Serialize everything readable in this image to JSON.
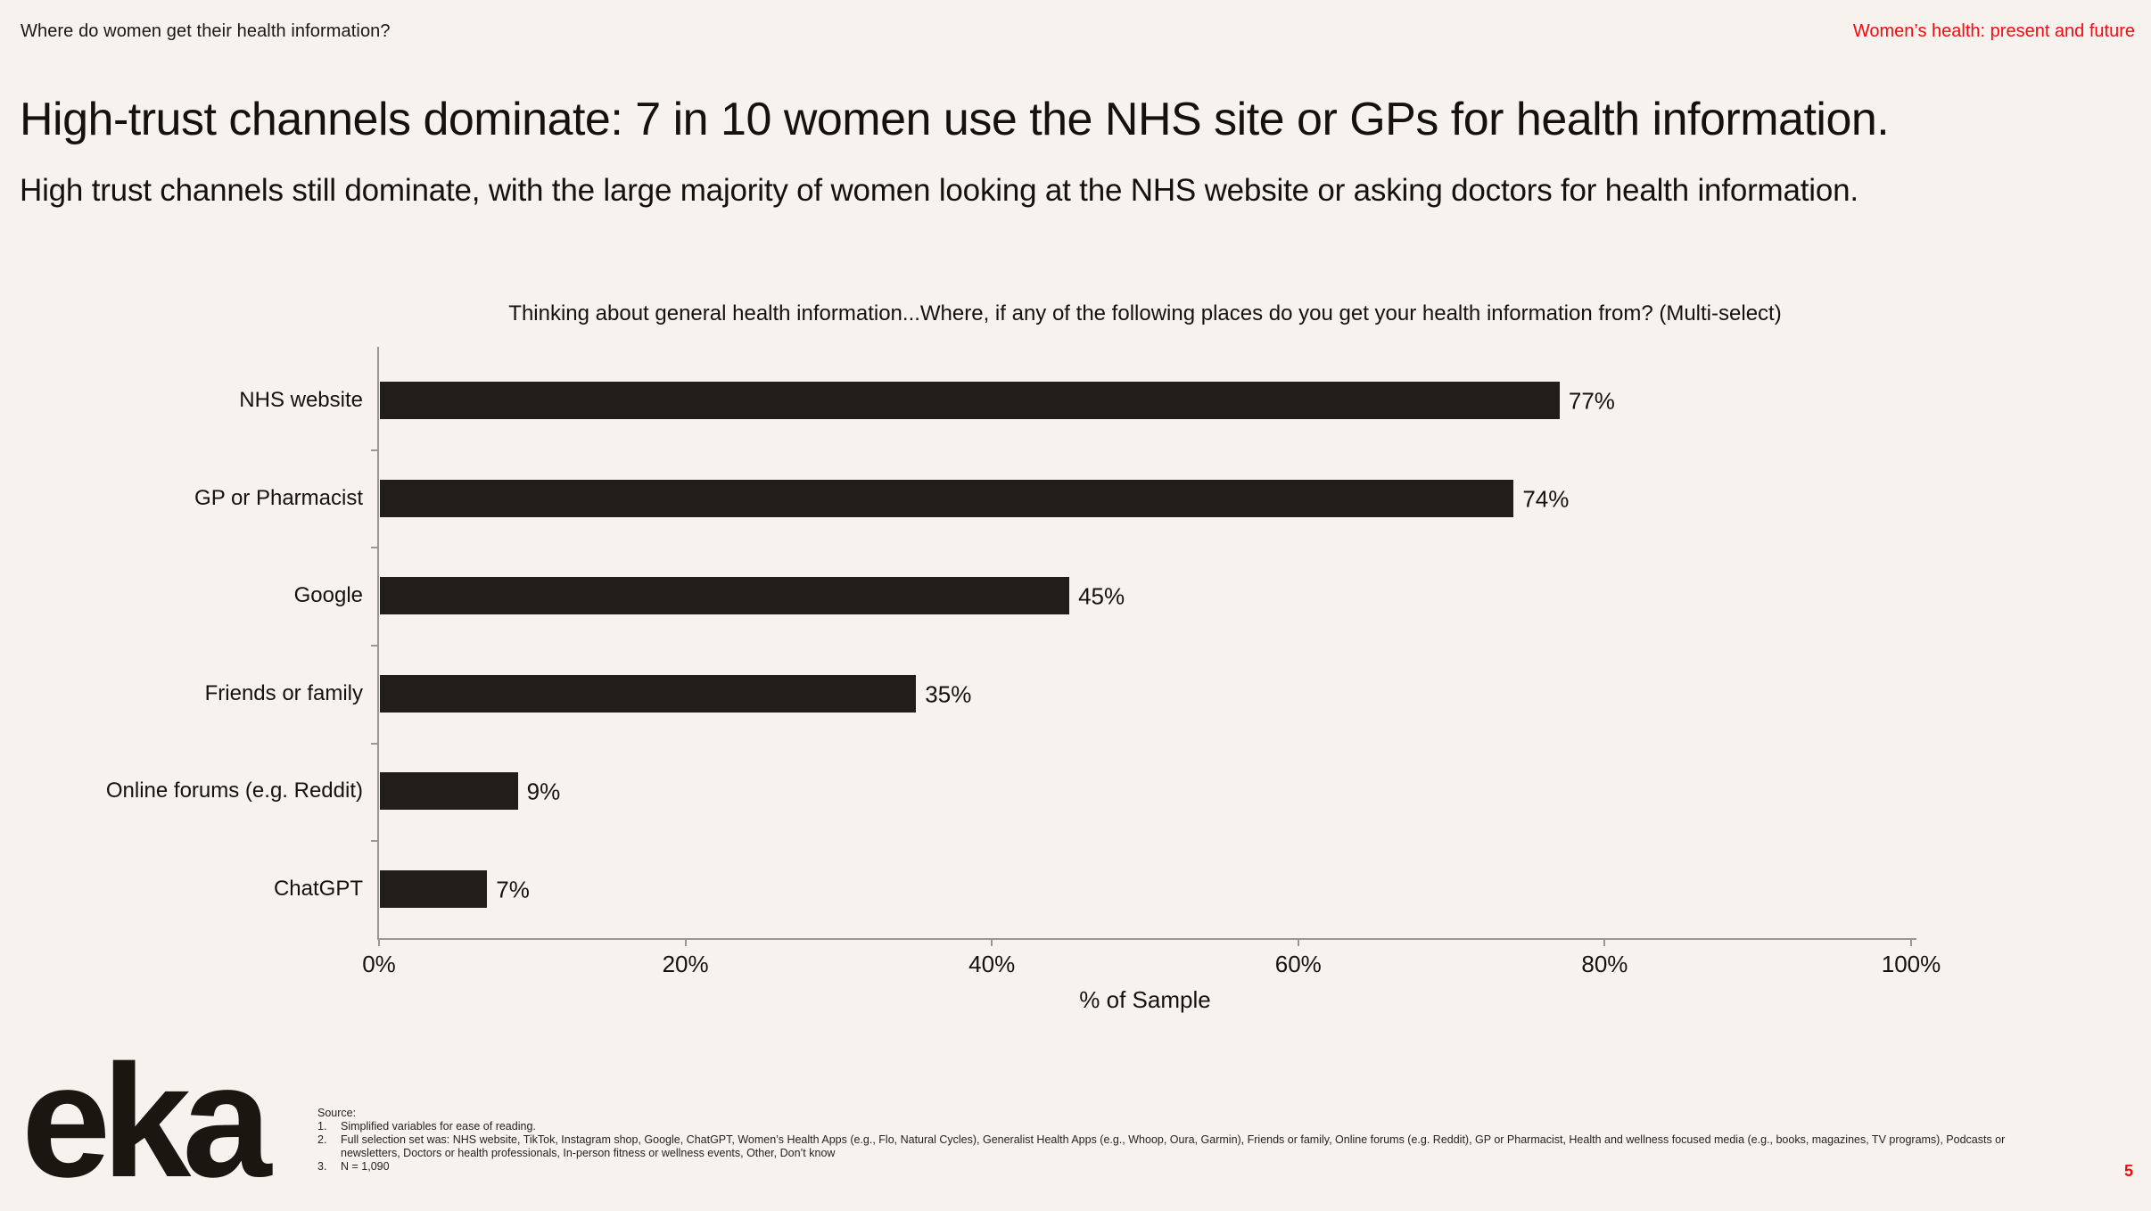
{
  "page": {
    "header_left": "Where do women get their health information?",
    "header_right": "Women’s health: present and future",
    "title": "High-trust channels dominate: 7 in 10 women use the NHS site or GPs for health information.",
    "subtitle": "High trust channels still dominate, with the large majority of women looking at the NHS website or asking doctors for health information.",
    "page_number": "5",
    "accent_red": "#f40b0b",
    "bar_color": "#201d1a",
    "axis_color": "#9a9691",
    "background": "#f7f2ed"
  },
  "chart_data": {
    "type": "bar",
    "orientation": "horizontal",
    "title": "Thinking about general health information...Where, if any of the following places do you get your health information from? (Multi-select)",
    "categories": [
      "NHS website",
      "GP or Pharmacist",
      "Google",
      "Friends or family",
      "Online forums (e.g. Reddit)",
      "ChatGPT"
    ],
    "values": [
      77,
      74,
      45,
      35,
      9,
      7
    ],
    "value_labels": [
      "77%",
      "74%",
      "45%",
      "35%",
      "9%",
      "7%"
    ],
    "xlabel": "% of Sample",
    "xlim": [
      0,
      100
    ],
    "xticks": [
      0,
      20,
      40,
      60,
      80,
      100
    ],
    "xtick_labels": [
      "0%",
      "20%",
      "40%",
      "60%",
      "80%",
      "100%"
    ],
    "grid": false,
    "legend": null
  },
  "footer": {
    "logo_text": "eka",
    "source_label": "Source:",
    "notes": [
      "Simplified variables for ease of reading.",
      "Full selection set was: NHS website, TikTok, Instagram shop, Google, ChatGPT, Women’s Health Apps (e.g., Flo, Natural Cycles), Generalist Health Apps (e.g., Whoop, Oura, Garmin), Friends or family, Online forums (e.g. Reddit), GP or Pharmacist, Health and wellness focused media (e.g., books, magazines, TV programs), Podcasts or newsletters, Doctors or health professionals, In-person fitness or wellness events, Other, Don’t know",
      "N = 1,090"
    ]
  }
}
